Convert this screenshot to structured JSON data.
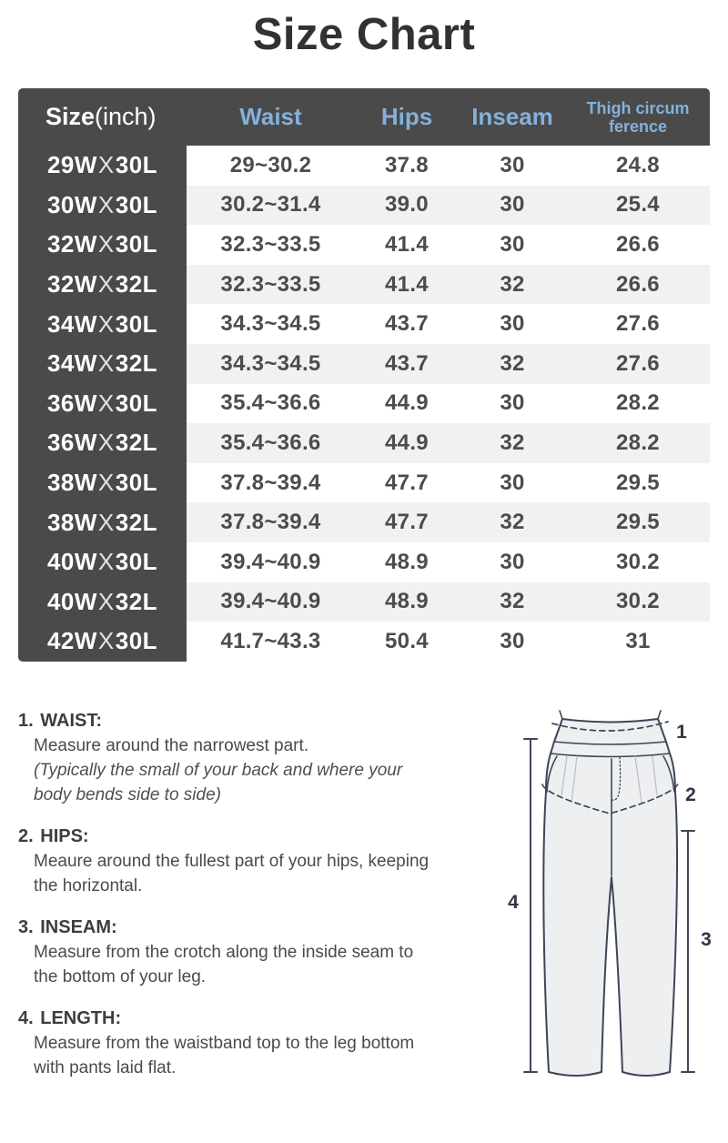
{
  "page": {
    "title": "Size Chart"
  },
  "colors": {
    "header_bg": "#4a4a4a",
    "header_blue_text": "#84b1da",
    "row_stripe": "#f1f1f2",
    "title_text": "#323232",
    "diagram_stroke": "#3d4656",
    "diagram_fill": "#edeff1"
  },
  "table": {
    "headers": {
      "size_bold": "Size",
      "size_normal": "(inch)",
      "waist": "Waist",
      "hips": "Hips",
      "inseam": "Inseam",
      "thigh_line1": "Thigh circum",
      "thigh_line2": "ference"
    },
    "rows": [
      {
        "size": "29WX30L",
        "waist": "29~30.2",
        "hips": "37.8",
        "inseam": "30",
        "thigh": "24.8"
      },
      {
        "size": "30WX30L",
        "waist": "30.2~31.4",
        "hips": "39.0",
        "inseam": "30",
        "thigh": "25.4"
      },
      {
        "size": "32WX30L",
        "waist": "32.3~33.5",
        "hips": "41.4",
        "inseam": "30",
        "thigh": "26.6"
      },
      {
        "size": "32WX32L",
        "waist": "32.3~33.5",
        "hips": "41.4",
        "inseam": "32",
        "thigh": "26.6"
      },
      {
        "size": "34WX30L",
        "waist": "34.3~34.5",
        "hips": "43.7",
        "inseam": "30",
        "thigh": "27.6"
      },
      {
        "size": "34WX32L",
        "waist": "34.3~34.5",
        "hips": "43.7",
        "inseam": "32",
        "thigh": "27.6"
      },
      {
        "size": "36WX30L",
        "waist": "35.4~36.6",
        "hips": "44.9",
        "inseam": "30",
        "thigh": "28.2"
      },
      {
        "size": "36WX32L",
        "waist": "35.4~36.6",
        "hips": "44.9",
        "inseam": "32",
        "thigh": "28.2"
      },
      {
        "size": "38WX30L",
        "waist": "37.8~39.4",
        "hips": "47.7",
        "inseam": "30",
        "thigh": "29.5"
      },
      {
        "size": "38WX32L",
        "waist": "37.8~39.4",
        "hips": "47.7",
        "inseam": "32",
        "thigh": "29.5"
      },
      {
        "size": "40WX30L",
        "waist": "39.4~40.9",
        "hips": "48.9",
        "inseam": "30",
        "thigh": "30.2"
      },
      {
        "size": "40WX32L",
        "waist": "39.4~40.9",
        "hips": "48.9",
        "inseam": "32",
        "thigh": "30.2"
      },
      {
        "size": "42WX30L",
        "waist": "41.7~43.3",
        "hips": "50.4",
        "inseam": "30",
        "thigh": "31"
      }
    ]
  },
  "instructions": [
    {
      "num": "1.",
      "title": "WAIST:",
      "body": [
        "Measure around the narrowest part."
      ],
      "italic": [
        "(Typically the small of your back and where your",
        "body bends side to side)"
      ]
    },
    {
      "num": "2.",
      "title": "HIPS:",
      "body": [
        "Meaure around the fullest part of your hips, keeping",
        "the horizontal."
      ],
      "italic": []
    },
    {
      "num": "3.",
      "title": "INSEAM:",
      "body": [
        "Measure from the crotch along the inside seam to",
        "the bottom of your leg."
      ],
      "italic": []
    },
    {
      "num": "4.",
      "title": "LENGTH:",
      "body": [
        "Measure from the waistband top to the leg bottom",
        "with pants laid flat."
      ],
      "italic": []
    }
  ],
  "diagram": {
    "labels": {
      "waist": "1",
      "hips": "2",
      "inseam": "3",
      "length": "4"
    }
  }
}
